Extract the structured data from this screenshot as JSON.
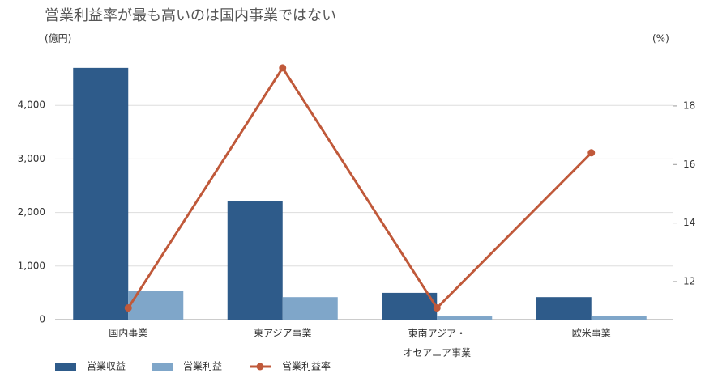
{
  "chart_data": {
    "type": "bar-line",
    "title": "営業利益率が最も高いのは国内事業ではない",
    "y_label": "(億円)",
    "y2_label": "(%)",
    "categories": [
      "国内事業",
      "東アジア事業",
      "東南アジア・\nオセアニア事業",
      "欧米事業"
    ],
    "series": [
      {
        "name": "営業収益",
        "color": "#2e5b8a",
        "type": "bar",
        "values": [
          4700,
          2220,
          500,
          420
        ]
      },
      {
        "name": "営業利益",
        "color": "#7fa6c9",
        "type": "bar",
        "values": [
          530,
          420,
          60,
          70
        ]
      },
      {
        "name": "営業利益率",
        "color": "#c0593a",
        "type": "line",
        "axis": "y2",
        "values": [
          11.1,
          19.3,
          11.1,
          16.4
        ]
      }
    ],
    "ylim": [
      0,
      5000
    ],
    "yticks": [
      0,
      {
        "value": 1000,
        "label": "1,000"
      },
      {
        "value": 2000,
        "label": "2,000"
      },
      {
        "value": 3000,
        "label": "3,000"
      },
      {
        "value": 4000,
        "label": "4,000"
      }
    ],
    "y2lim": [
      10.7,
      19.85
    ],
    "y2ticks": [
      12,
      14,
      16,
      18
    ],
    "grid": true
  }
}
